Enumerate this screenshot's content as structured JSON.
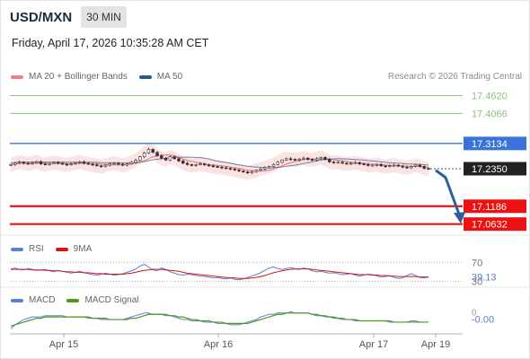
{
  "header": {
    "symbol": "USD/MXN",
    "timeframe": "30 MIN",
    "datetime": "Friday, April 17, 2026 10:35:28 AM CET"
  },
  "legend": {
    "ma20_label": "MA 20 + Bollinger Bands",
    "ma50_label": "MA 50",
    "copyright": "Research © 2026 Trading Central"
  },
  "colors": {
    "ma20": "#f08080",
    "ma50": "#2d5a8c",
    "resistance_green": "#8cc47a",
    "pivot_blue": "#3a74d8",
    "support_red": "#ee1111",
    "current_price_tag": "#222222",
    "arrow": "#2d5fa0",
    "rsi": "#5b7fd6",
    "rsi_ma": "#dd1111",
    "macd": "#5b7fd6",
    "macd_signal": "#4a9a1a"
  },
  "chart_data": [
    {
      "type": "candlestick",
      "title": "",
      "x_ticks": [
        "Apr 15",
        "Apr 16",
        "Apr 17",
        "Apr 19"
      ],
      "ylim": [
        17.04,
        17.48
      ],
      "levels": [
        {
          "name": "resistance-2",
          "value": 17.462,
          "label": "17.4620",
          "style": "green"
        },
        {
          "name": "resistance-1",
          "value": 17.4066,
          "label": "17.4066",
          "style": "green"
        },
        {
          "name": "pivot",
          "value": 17.3134,
          "label": "17.3134",
          "style": "blue"
        },
        {
          "name": "current-price",
          "value": 17.235,
          "label": "17.2350",
          "style": "dark"
        },
        {
          "name": "support-1",
          "value": 17.1186,
          "label": "17.1186",
          "style": "red"
        },
        {
          "name": "support-2",
          "value": 17.0632,
          "label": "17.0632",
          "style": "red"
        }
      ],
      "close": [
        17.248,
        17.252,
        17.255,
        17.252,
        17.25,
        17.253,
        17.257,
        17.25,
        17.248,
        17.251,
        17.254,
        17.252,
        17.249,
        17.247,
        17.25,
        17.253,
        17.256,
        17.252,
        17.249,
        17.247,
        17.244,
        17.242,
        17.246,
        17.25,
        17.252,
        17.249,
        17.246,
        17.25,
        17.255,
        17.261,
        17.272,
        17.284,
        17.295,
        17.286,
        17.275,
        17.268,
        17.262,
        17.272,
        17.266,
        17.259,
        17.252,
        17.248,
        17.245,
        17.248,
        17.25,
        17.247,
        17.244,
        17.242,
        17.24,
        17.238,
        17.236,
        17.234,
        17.231,
        17.228,
        17.225,
        17.222,
        17.226,
        17.23,
        17.234,
        17.238,
        17.242,
        17.248,
        17.255,
        17.262,
        17.266,
        17.264,
        17.262,
        17.265,
        17.268,
        17.264,
        17.262,
        17.266,
        17.27,
        17.264,
        17.256,
        17.254,
        17.255,
        17.252,
        17.25,
        17.252,
        17.254,
        17.25,
        17.248,
        17.245,
        17.246,
        17.248,
        17.244,
        17.242,
        17.244,
        17.246,
        17.243,
        17.24,
        17.238,
        17.242,
        17.246,
        17.242,
        17.236,
        17.235
      ],
      "bb_upper_offset": 0.022,
      "bb_lower_offset": 0.022,
      "ma50_offset": 0.004,
      "arrow": {
        "from_value": 17.23,
        "to_value": 17.07
      }
    },
    {
      "type": "line",
      "name": "RSI panel",
      "series": [
        {
          "name": "RSI"
        },
        {
          "name": "9MA"
        }
      ],
      "ylim": [
        25,
        80
      ],
      "levels": [
        {
          "value": 70,
          "label": "70"
        },
        {
          "value": 30,
          "label": "30"
        }
      ],
      "value_label": "39.13",
      "value": 39.13,
      "rsi_values": [
        56,
        58,
        55,
        54,
        57,
        55,
        53,
        54,
        55,
        52,
        50,
        53,
        51,
        49,
        47,
        49,
        51,
        48,
        46,
        44,
        43,
        45,
        47,
        45,
        43,
        44,
        46,
        49,
        52,
        56,
        62,
        66,
        60,
        54,
        52,
        58,
        55,
        50,
        47,
        44,
        43,
        45,
        44,
        42,
        41,
        40,
        39,
        37,
        38,
        36,
        35,
        37,
        34,
        33,
        35,
        38,
        41,
        44,
        48,
        53,
        58,
        60,
        57,
        55,
        57,
        59,
        56,
        55,
        58,
        56,
        52,
        50,
        51,
        49,
        47,
        48,
        46,
        44,
        45,
        46,
        43,
        41,
        43,
        45,
        44,
        41,
        39,
        40,
        42,
        38,
        36,
        37,
        42,
        46,
        42,
        38,
        37,
        39
      ],
      "rsi_ma_values": [
        55,
        55,
        55,
        55,
        55,
        54,
        54,
        54,
        53,
        53,
        52,
        52,
        51,
        50,
        50,
        49,
        49,
        48,
        48,
        47,
        46,
        46,
        45,
        45,
        45,
        45,
        45,
        46,
        47,
        49,
        51,
        53,
        54,
        55,
        55,
        55,
        54,
        53,
        52,
        51,
        49,
        47,
        46,
        45,
        44,
        43,
        42,
        41,
        40,
        39,
        38,
        37,
        37,
        36,
        36,
        36,
        37,
        38,
        40,
        42,
        45,
        48,
        50,
        52,
        54,
        55,
        56,
        56,
        56,
        56,
        55,
        54,
        53,
        52,
        51,
        50,
        49,
        48,
        47,
        46,
        45,
        44,
        44,
        44,
        43,
        43,
        42,
        42,
        41,
        41,
        40,
        40,
        40,
        40,
        40,
        39,
        39,
        39
      ]
    },
    {
      "type": "line",
      "name": "MACD panel",
      "series": [
        {
          "name": "MACD"
        },
        {
          "name": "MACD Signal"
        }
      ],
      "ylim": [
        -0.012,
        0.008
      ],
      "zero_label": "0",
      "value_label": "-0.00",
      "value": -0.0,
      "macd_values": [
        -0.008,
        -0.005,
        -0.003,
        -0.001,
        0.0,
        0.001,
        0.001,
        0.001,
        0.002,
        0.002,
        0.002,
        0.002,
        0.002,
        0.001,
        0.001,
        0.001,
        0.001,
        0.001,
        0.0,
        0.0,
        0.0,
        -0.001,
        -0.001,
        -0.001,
        -0.001,
        -0.001,
        -0.001,
        0.0,
        0.001,
        0.002,
        0.003,
        0.004,
        0.004,
        0.003,
        0.003,
        0.003,
        0.002,
        0.002,
        0.001,
        0.0,
        -0.001,
        -0.001,
        -0.002,
        -0.002,
        -0.002,
        -0.003,
        -0.003,
        -0.003,
        -0.004,
        -0.004,
        -0.004,
        -0.005,
        -0.005,
        -0.005,
        -0.004,
        -0.003,
        -0.002,
        -0.001,
        0.001,
        0.002,
        0.003,
        0.003,
        0.004,
        0.004,
        0.004,
        0.005,
        0.004,
        0.004,
        0.004,
        0.004,
        0.003,
        0.002,
        0.002,
        0.001,
        0.001,
        0.0,
        0.0,
        -0.001,
        -0.001,
        -0.001,
        -0.002,
        -0.002,
        -0.002,
        -0.002,
        -0.002,
        -0.002,
        -0.002,
        -0.002,
        -0.003,
        -0.003,
        -0.003,
        -0.003,
        -0.003,
        -0.002,
        -0.002,
        -0.003,
        -0.003,
        -0.003
      ],
      "signal_values": [
        -0.006,
        -0.005,
        -0.004,
        -0.003,
        -0.002,
        -0.001,
        0.0,
        0.0,
        0.001,
        0.001,
        0.001,
        0.001,
        0.001,
        0.001,
        0.001,
        0.001,
        0.001,
        0.001,
        0.001,
        0.0,
        0.0,
        0.0,
        0.0,
        -0.001,
        -0.001,
        -0.001,
        -0.001,
        -0.001,
        0.0,
        0.0,
        0.001,
        0.002,
        0.003,
        0.003,
        0.003,
        0.003,
        0.003,
        0.002,
        0.002,
        0.001,
        0.001,
        0.0,
        -0.001,
        -0.001,
        -0.002,
        -0.002,
        -0.002,
        -0.003,
        -0.003,
        -0.003,
        -0.004,
        -0.004,
        -0.004,
        -0.004,
        -0.004,
        -0.004,
        -0.003,
        -0.002,
        -0.001,
        0.0,
        0.001,
        0.002,
        0.003,
        0.003,
        0.004,
        0.004,
        0.004,
        0.004,
        0.004,
        0.004,
        0.003,
        0.003,
        0.002,
        0.002,
        0.001,
        0.001,
        0.0,
        0.0,
        -0.001,
        -0.001,
        -0.001,
        -0.002,
        -0.002,
        -0.002,
        -0.002,
        -0.002,
        -0.002,
        -0.002,
        -0.002,
        -0.003,
        -0.003,
        -0.003,
        -0.003,
        -0.003,
        -0.003,
        -0.003,
        -0.003,
        -0.003
      ]
    }
  ]
}
